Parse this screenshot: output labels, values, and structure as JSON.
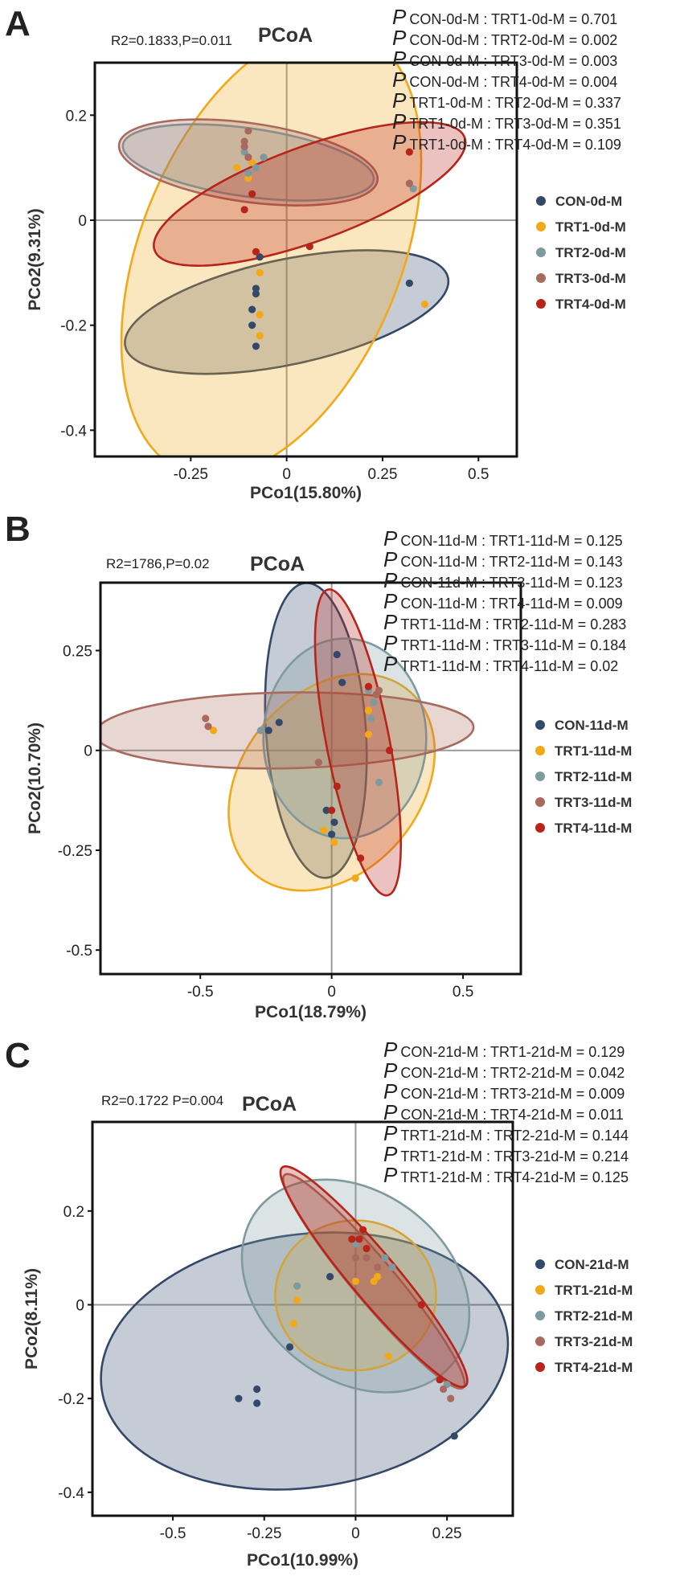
{
  "colors": {
    "CON": "#34496a",
    "TRT1": "#f2a818",
    "TRT2": "#7f9a9e",
    "TRT3": "#a86a5e",
    "TRT4": "#b8231a"
  },
  "chart_data": [
    {
      "type": "scatter",
      "panel": "A",
      "title": "PCoA",
      "stats": "R2=0.1833,P=0.011",
      "xlabel": "PCo1(15.80%)",
      "ylabel": "PCo2(9.31%)",
      "xlim": [
        -0.5,
        0.6
      ],
      "ylim": [
        -0.45,
        0.3
      ],
      "xticks": [
        -0.25,
        0,
        0.25,
        0.5
      ],
      "xtick_labels": [
        "-0.25",
        "0",
        "0.25",
        "0.5"
      ],
      "yticks": [
        -0.4,
        -0.2,
        0,
        0.2
      ],
      "ytick_labels": [
        "-0.4",
        "-0.2",
        "0",
        "0.2"
      ],
      "comparisons": [
        {
          "pair": "CON-0d-M : TRT1-0d-M = 0.701"
        },
        {
          "pair": "CON-0d-M : TRT2-0d-M = 0.002"
        },
        {
          "pair": "CON-0d-M : TRT3-0d-M = 0.003"
        },
        {
          "pair": "CON-0d-M : TRT4-0d-M = 0.004"
        },
        {
          "pair": "TRT1-0d-M : TRT2-0d-M = 0.337"
        },
        {
          "pair": "TRT1-0d-M : TRT3-0d-M = 0.351"
        },
        {
          "pair": "TRT1-0d-M : TRT4-0d-M = 0.109"
        }
      ],
      "series": [
        {
          "name": "CON-0d-M",
          "group": "CON",
          "points": [
            [
              -0.07,
              -0.07
            ],
            [
              -0.08,
              -0.13
            ],
            [
              -0.08,
              -0.14
            ],
            [
              -0.09,
              -0.17
            ],
            [
              -0.09,
              -0.2
            ],
            [
              -0.08,
              -0.24
            ],
            [
              0.32,
              -0.12
            ]
          ],
          "ellipse": {
            "cx": 0.0,
            "cy": -0.175,
            "rx": 0.43,
            "ry": 0.1,
            "angle": 12
          }
        },
        {
          "name": "TRT1-0d-M",
          "group": "TRT1",
          "points": [
            [
              -0.13,
              0.1
            ],
            [
              -0.09,
              0.11
            ],
            [
              -0.1,
              0.08
            ],
            [
              -0.07,
              -0.1
            ],
            [
              -0.07,
              -0.18
            ],
            [
              -0.07,
              -0.22
            ],
            [
              0.36,
              -0.16
            ]
          ],
          "ellipse": {
            "cx": -0.04,
            "cy": -0.06,
            "rx": 0.34,
            "ry": 0.45,
            "angle": -22
          }
        },
        {
          "name": "TRT2-0d-M",
          "group": "TRT2",
          "points": [
            [
              -0.11,
              0.13
            ],
            [
              -0.1,
              0.09
            ],
            [
              -0.08,
              0.1
            ],
            [
              -0.06,
              0.12
            ],
            [
              0.33,
              0.06
            ]
          ],
          "ellipse": {
            "cx": -0.1,
            "cy": 0.11,
            "rx": 0.33,
            "ry": 0.065,
            "angle": -8
          }
        },
        {
          "name": "TRT3-0d-M",
          "group": "TRT3",
          "points": [
            [
              -0.1,
              0.17
            ],
            [
              -0.11,
              0.15
            ],
            [
              -0.11,
              0.14
            ],
            [
              -0.1,
              0.12
            ],
            [
              0.32,
              0.07
            ]
          ],
          "ellipse": {
            "cx": -0.1,
            "cy": 0.11,
            "rx": 0.34,
            "ry": 0.075,
            "angle": -8
          }
        },
        {
          "name": "TRT4-0d-M",
          "group": "TRT4",
          "points": [
            [
              -0.09,
              0.05
            ],
            [
              -0.11,
              0.02
            ],
            [
              -0.08,
              -0.06
            ],
            [
              0.06,
              -0.05
            ],
            [
              0.32,
              0.13
            ]
          ],
          "ellipse": {
            "cx": 0.06,
            "cy": 0.05,
            "rx": 0.43,
            "ry": 0.09,
            "angle": 20
          }
        }
      ]
    },
    {
      "type": "scatter",
      "panel": "B",
      "title": "PCoA",
      "stats": "R2=1786,P=0.02",
      "xlabel": "PCo1(18.79%)",
      "ylabel": "PCo2(10.70%)",
      "xlim": [
        -0.88,
        0.72
      ],
      "ylim": [
        -0.56,
        0.42
      ],
      "xticks": [
        -0.5,
        0,
        0.5
      ],
      "xtick_labels": [
        "-0.5",
        "0",
        "0.5"
      ],
      "yticks": [
        -0.5,
        -0.25,
        0,
        0.25
      ],
      "ytick_labels": [
        "-0.5",
        "-0.25",
        "0",
        "0.25"
      ],
      "comparisons": [
        {
          "pair": "CON-11d-M : TRT1-11d-M = 0.125"
        },
        {
          "pair": "CON-11d-M : TRT2-11d-M = 0.143"
        },
        {
          "pair": "CON-11d-M : TRT3-11d-M = 0.123"
        },
        {
          "pair": "CON-11d-M : TRT4-11d-M = 0.009"
        },
        {
          "pair": "TRT1-11d-M : TRT2-11d-M = 0.283"
        },
        {
          "pair": "TRT1-11d-M : TRT3-11d-M = 0.184"
        },
        {
          "pair": "TRT1-11d-M : TRT4-11d-M = 0.02"
        }
      ],
      "series": [
        {
          "name": "CON-11d-M",
          "group": "CON",
          "points": [
            [
              0.02,
              0.24
            ],
            [
              0.04,
              0.17
            ],
            [
              -0.2,
              0.07
            ],
            [
              -0.24,
              0.05
            ],
            [
              -0.02,
              -0.15
            ],
            [
              0.01,
              -0.18
            ],
            [
              0.0,
              -0.21
            ]
          ],
          "ellipse": {
            "cx": -0.06,
            "cy": 0.05,
            "rx": 0.19,
            "ry": 0.37,
            "angle": 4
          }
        },
        {
          "name": "TRT1-11d-M",
          "group": "TRT1",
          "points": [
            [
              -0.45,
              0.05
            ],
            [
              0.14,
              0.1
            ],
            [
              0.14,
              0.04
            ],
            [
              -0.03,
              -0.2
            ],
            [
              0.01,
              -0.23
            ],
            [
              0.09,
              -0.32
            ]
          ],
          "ellipse": {
            "cx": 0.0,
            "cy": -0.08,
            "rx": 0.34,
            "ry": 0.3,
            "angle": -40
          }
        },
        {
          "name": "TRT2-11d-M",
          "group": "TRT2",
          "points": [
            [
              -0.27,
              0.05
            ],
            [
              0.14,
              0.15
            ],
            [
              0.15,
              0.08
            ],
            [
              0.18,
              -0.08
            ],
            [
              0.16,
              0.12
            ]
          ],
          "ellipse": {
            "cx": 0.05,
            "cy": 0.03,
            "rx": 0.31,
            "ry": 0.25,
            "angle": 0
          }
        },
        {
          "name": "TRT3-11d-M",
          "group": "TRT3",
          "points": [
            [
              -0.48,
              0.08
            ],
            [
              -0.47,
              0.06
            ],
            [
              -0.05,
              -0.03
            ],
            [
              0.18,
              0.15
            ],
            [
              0.17,
              0.14
            ]
          ],
          "ellipse": {
            "cx": -0.18,
            "cy": 0.05,
            "rx": 0.72,
            "ry": 0.095,
            "angle": 1
          }
        },
        {
          "name": "TRT4-11d-M",
          "group": "TRT4",
          "points": [
            [
              0.14,
              0.16
            ],
            [
              0.22,
              0.0
            ],
            [
              0.02,
              -0.09
            ],
            [
              0.0,
              -0.15
            ],
            [
              0.11,
              -0.27
            ]
          ],
          "ellipse": {
            "cx": 0.1,
            "cy": 0.02,
            "rx": 0.12,
            "ry": 0.39,
            "angle": 11
          }
        }
      ]
    },
    {
      "type": "scatter",
      "panel": "C",
      "title": "PCoA",
      "stats": "R2=0.1722 P=0.004",
      "xlabel": "PCo1(10.99%)",
      "ylabel": "PCo2(8.11%)",
      "xlim": [
        -0.72,
        0.43
      ],
      "ylim": [
        -0.45,
        0.39
      ],
      "xticks": [
        -0.5,
        -0.25,
        0,
        0.25
      ],
      "xtick_labels": [
        "-0.5",
        "-0.25",
        "0",
        "0.25"
      ],
      "yticks": [
        -0.4,
        -0.2,
        0,
        0.2
      ],
      "ytick_labels": [
        "-0.4",
        "-0.2",
        "0",
        "0.2"
      ],
      "comparisons": [
        {
          "pair": "CON-21d-M : TRT1-21d-M = 0.129"
        },
        {
          "pair": "CON-21d-M : TRT2-21d-M = 0.042"
        },
        {
          "pair": "CON-21d-M : TRT3-21d-M = 0.009"
        },
        {
          "pair": "CON-21d-M : TRT4-21d-M = 0.011"
        },
        {
          "pair": "TRT1-21d-M : TRT2-21d-M = 0.144"
        },
        {
          "pair": "TRT1-21d-M : TRT3-21d-M = 0.214"
        },
        {
          "pair": "TRT1-21d-M : TRT4-21d-M = 0.125"
        }
      ],
      "series": [
        {
          "name": "CON-21d-M",
          "group": "CON",
          "points": [
            [
              -0.32,
              -0.2
            ],
            [
              -0.27,
              -0.18
            ],
            [
              -0.27,
              -0.21
            ],
            [
              -0.18,
              -0.09
            ],
            [
              -0.07,
              0.06
            ],
            [
              0.27,
              -0.28
            ]
          ],
          "ellipse": {
            "cx": -0.14,
            "cy": -0.12,
            "rx": 0.56,
            "ry": 0.27,
            "angle": 8
          }
        },
        {
          "name": "TRT1-21d-M",
          "group": "TRT1",
          "points": [
            [
              -0.17,
              -0.04
            ],
            [
              -0.16,
              0.01
            ],
            [
              0.0,
              0.05
            ],
            [
              0.05,
              0.05
            ],
            [
              0.06,
              0.06
            ],
            [
              0.09,
              -0.11
            ]
          ],
          "ellipse": {
            "cx": 0.0,
            "cy": 0.02,
            "rx": 0.22,
            "ry": 0.16,
            "angle": 0
          }
        },
        {
          "name": "TRT2-21d-M",
          "group": "TRT2",
          "points": [
            [
              -0.16,
              0.04
            ],
            [
              0.0,
              0.13
            ],
            [
              0.08,
              0.1
            ],
            [
              0.1,
              0.08
            ],
            [
              0.25,
              -0.17
            ]
          ],
          "ellipse": {
            "cx": 0.0,
            "cy": 0.04,
            "rx": 0.34,
            "ry": 0.2,
            "angle": -38
          }
        },
        {
          "name": "TRT3-21d-M",
          "group": "TRT3",
          "points": [
            [
              0.0,
              0.1
            ],
            [
              0.03,
              0.1
            ],
            [
              0.06,
              0.08
            ],
            [
              0.24,
              -0.18
            ],
            [
              0.26,
              -0.2
            ]
          ],
          "ellipse": {
            "cx": 0.05,
            "cy": 0.05,
            "rx": 0.38,
            "ry": 0.045,
            "angle": -50
          }
        },
        {
          "name": "TRT4-21d-M",
          "group": "TRT4",
          "points": [
            [
              -0.01,
              0.14
            ],
            [
              0.01,
              0.14
            ],
            [
              0.02,
              0.16
            ],
            [
              0.03,
              0.12
            ],
            [
              0.18,
              0.0
            ],
            [
              0.23,
              -0.16
            ]
          ],
          "ellipse": {
            "cx": 0.05,
            "cy": 0.06,
            "rx": 0.39,
            "ry": 0.05,
            "angle": -50
          }
        }
      ]
    }
  ]
}
